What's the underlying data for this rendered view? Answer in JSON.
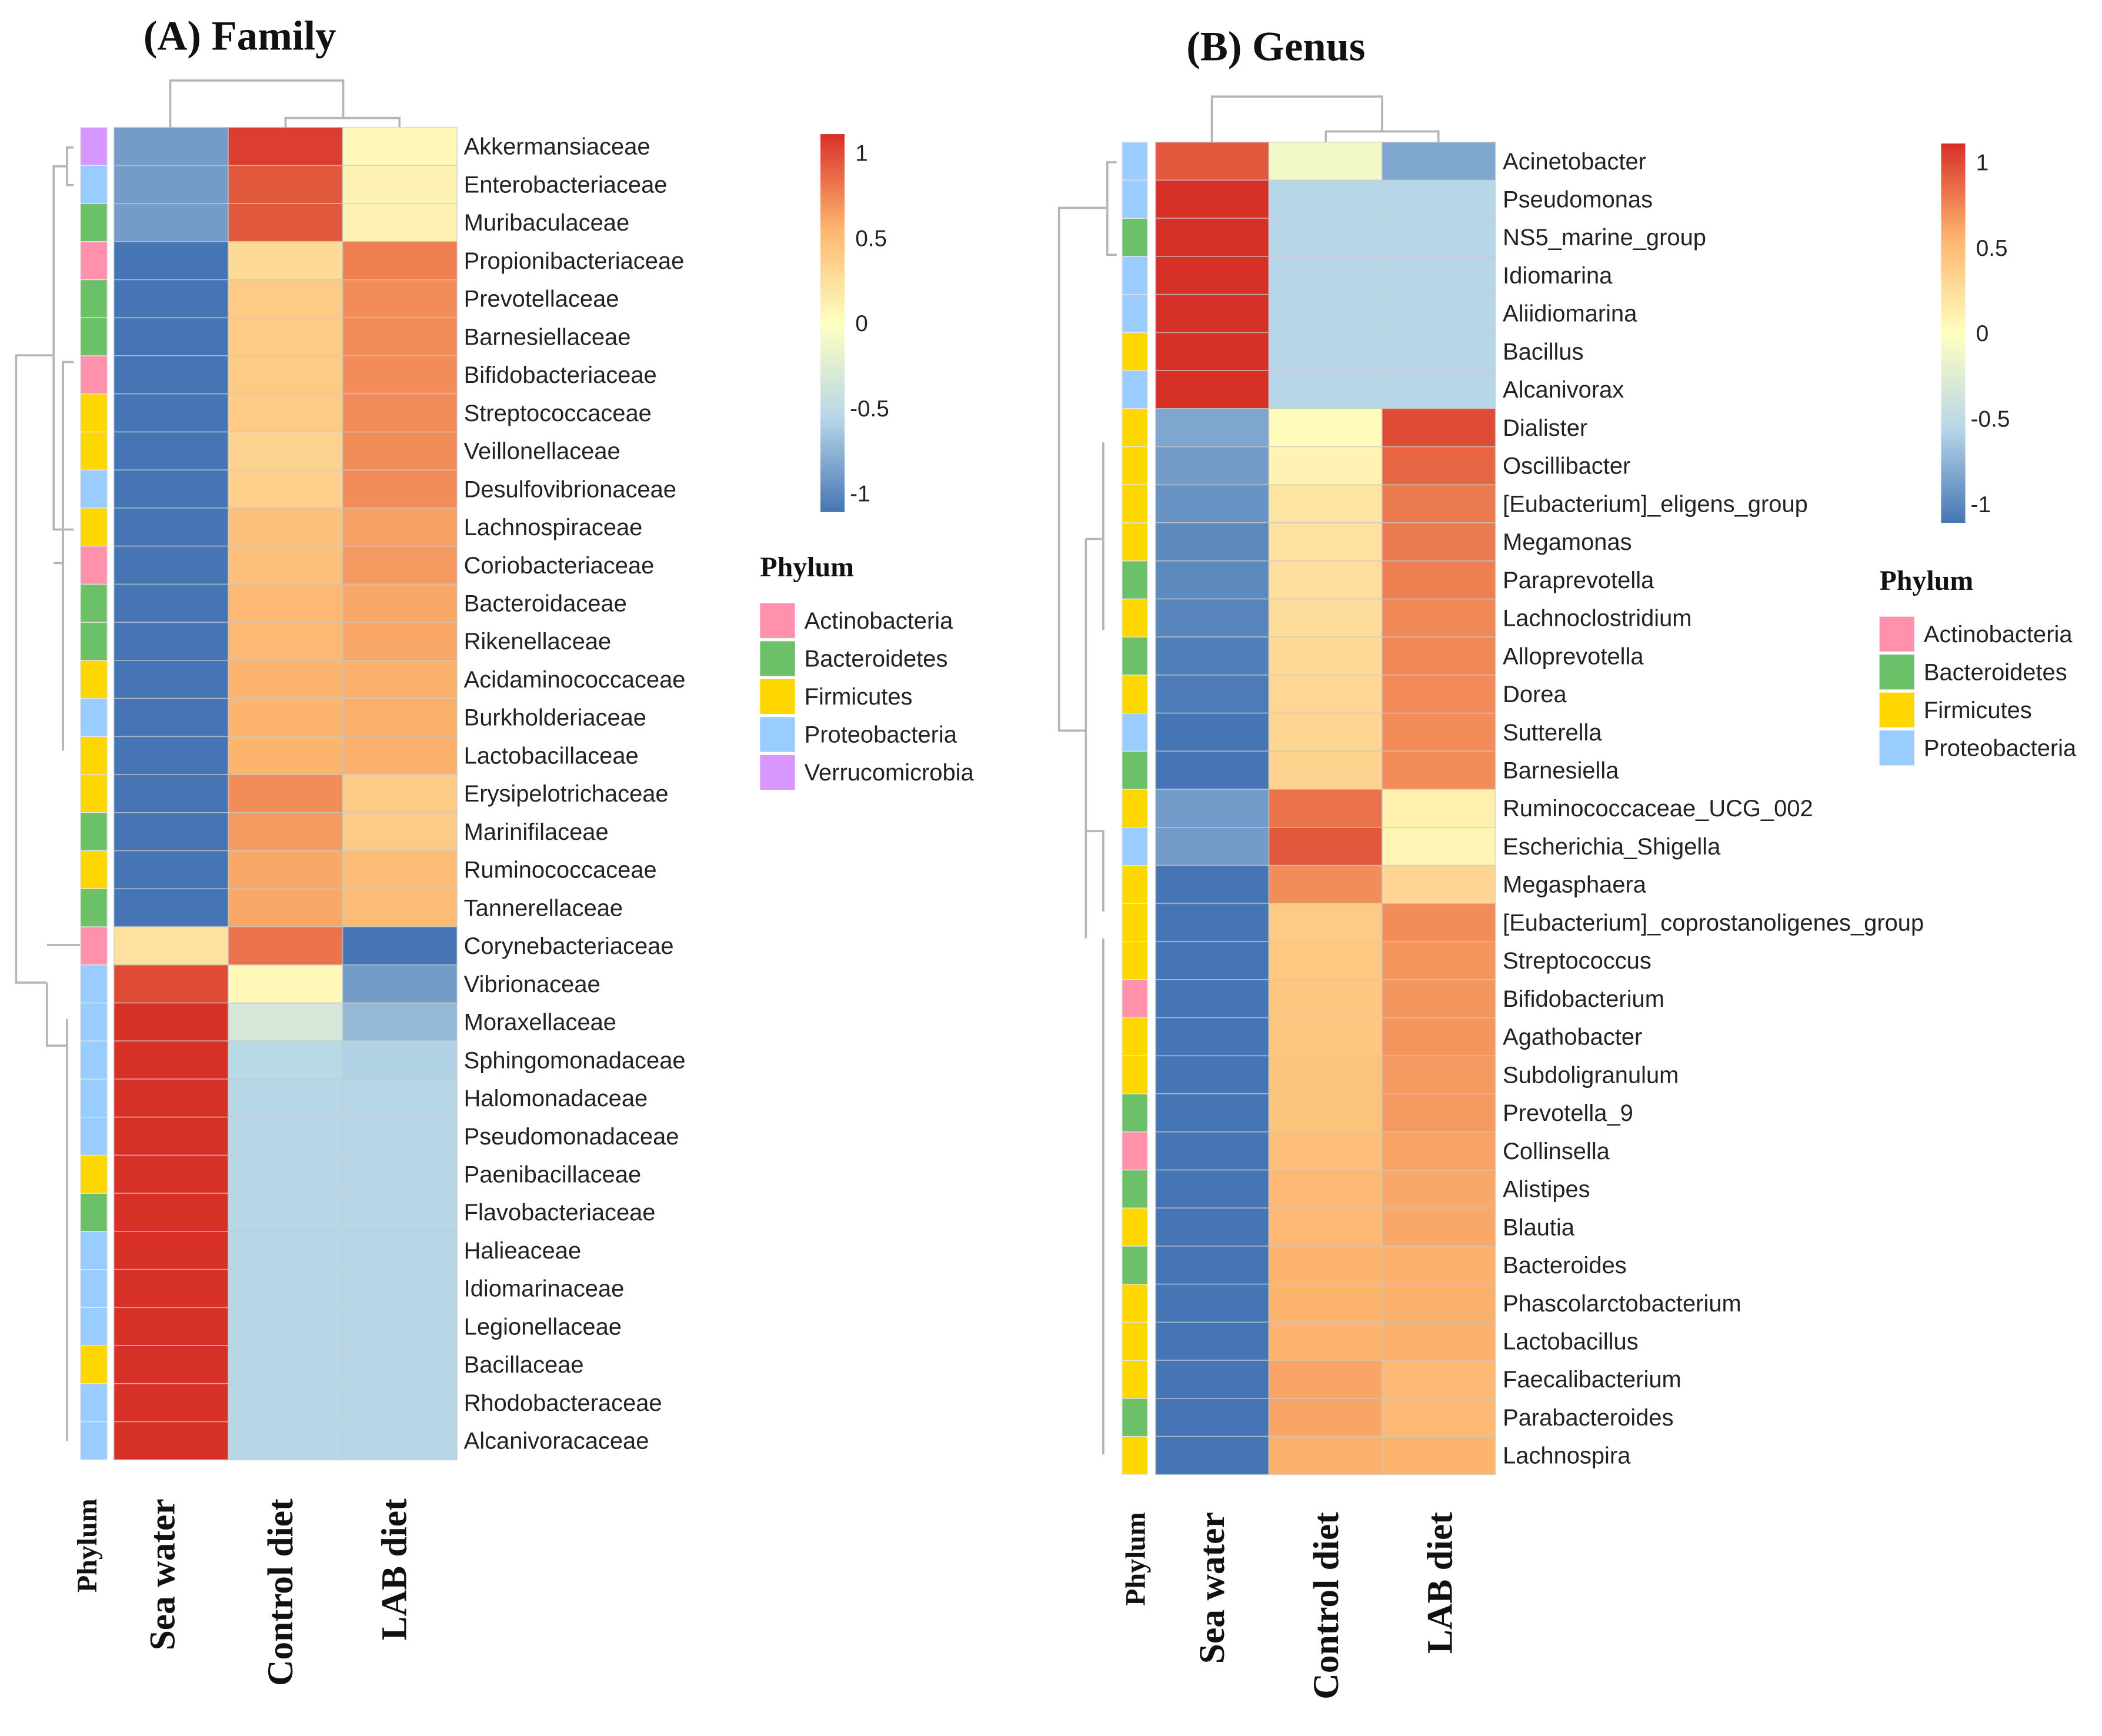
{
  "phylum_colors": {
    "Actinobacteria": "#ff91ad",
    "Bacteroidetes": "#6cc168",
    "Firmicutes": "#ffd700",
    "Proteobacteria": "#99ccff",
    "Verrucomicrobia": "#d896ff"
  },
  "colorscale": {
    "stops": [
      [
        -1,
        "#4575b4"
      ],
      [
        -0.5,
        "#b7d7e8"
      ],
      [
        0,
        "#ffffc0"
      ],
      [
        0.5,
        "#fdb56e"
      ],
      [
        1,
        "#d73027"
      ]
    ]
  },
  "chart_data": [
    {
      "type": "heatmap",
      "title": "(A) Family",
      "columns": [
        "Phylum",
        "Sea water",
        "Control diet",
        "LAB diet"
      ],
      "colorbar_ticks": [
        "1",
        "0.5",
        "0",
        "-0.5",
        "-1"
      ],
      "legend_title": "Phylum",
      "legend": [
        "Actinobacteria",
        "Bacteroidetes",
        "Firmicutes",
        "Proteobacteria",
        "Verrucomicrobia"
      ],
      "rows": [
        {
          "name": "Akkermansiaceae",
          "phylum": "Verrucomicrobia",
          "values": [
            -0.8,
            0.95,
            0.05
          ]
        },
        {
          "name": "Enterobacteriaceae",
          "phylum": "Proteobacteria",
          "values": [
            -0.8,
            0.85,
            0.08
          ]
        },
        {
          "name": "Muribaculaceae",
          "phylum": "Bacteroidetes",
          "values": [
            -0.8,
            0.85,
            0.08
          ]
        },
        {
          "name": "Propionibacteriaceae",
          "phylum": "Actinobacteria",
          "values": [
            -1,
            0.25,
            0.7
          ]
        },
        {
          "name": "Prevotellaceae",
          "phylum": "Bacteroidetes",
          "values": [
            -1,
            0.35,
            0.65
          ]
        },
        {
          "name": "Barnesiellaceae",
          "phylum": "Bacteroidetes",
          "values": [
            -1,
            0.35,
            0.65
          ]
        },
        {
          "name": "Bifidobacteriaceae",
          "phylum": "Actinobacteria",
          "values": [
            -1,
            0.35,
            0.65
          ]
        },
        {
          "name": "Streptococcaceae",
          "phylum": "Firmicutes",
          "values": [
            -1,
            0.35,
            0.65
          ]
        },
        {
          "name": "Veillonellaceae",
          "phylum": "Firmicutes",
          "values": [
            -1,
            0.3,
            0.65
          ]
        },
        {
          "name": "Desulfovibrionaceae",
          "phylum": "Proteobacteria",
          "values": [
            -1,
            0.32,
            0.65
          ]
        },
        {
          "name": "Lachnospiraceae",
          "phylum": "Firmicutes",
          "values": [
            -1,
            0.42,
            0.58
          ]
        },
        {
          "name": "Coriobacteriaceae",
          "phylum": "Actinobacteria",
          "values": [
            -1,
            0.42,
            0.6
          ]
        },
        {
          "name": "Bacteroidaceae",
          "phylum": "Bacteroidetes",
          "values": [
            -1,
            0.47,
            0.55
          ]
        },
        {
          "name": "Rikenellaceae",
          "phylum": "Bacteroidetes",
          "values": [
            -1,
            0.47,
            0.55
          ]
        },
        {
          "name": "Acidaminococcaceae",
          "phylum": "Firmicutes",
          "values": [
            -1,
            0.5,
            0.52
          ]
        },
        {
          "name": "Burkholderiaceae",
          "phylum": "Proteobacteria",
          "values": [
            -1,
            0.5,
            0.52
          ]
        },
        {
          "name": "Lactobacillaceae",
          "phylum": "Firmicutes",
          "values": [
            -1,
            0.5,
            0.52
          ]
        },
        {
          "name": "Erysipelotrichaceae",
          "phylum": "Firmicutes",
          "values": [
            -1,
            0.65,
            0.35
          ]
        },
        {
          "name": "Marinifilaceae",
          "phylum": "Bacteroidetes",
          "values": [
            -1,
            0.6,
            0.35
          ]
        },
        {
          "name": "Ruminococcaceae",
          "phylum": "Firmicutes",
          "values": [
            -1,
            0.55,
            0.45
          ]
        },
        {
          "name": "Tannerellaceae",
          "phylum": "Bacteroidetes",
          "values": [
            -1,
            0.55,
            0.45
          ]
        },
        {
          "name": "Corynebacteriaceae",
          "phylum": "Actinobacteria",
          "values": [
            0.2,
            0.75,
            -1
          ]
        },
        {
          "name": "Vibrionaceae",
          "phylum": "Proteobacteria",
          "values": [
            0.9,
            0.05,
            -0.8
          ]
        },
        {
          "name": "Moraxellaceae",
          "phylum": "Proteobacteria",
          "values": [
            1,
            -0.3,
            -0.65
          ]
        },
        {
          "name": "Sphingomonadaceae",
          "phylum": "Proteobacteria",
          "values": [
            1,
            -0.48,
            -0.52
          ]
        },
        {
          "name": "Halomonadaceae",
          "phylum": "Proteobacteria",
          "values": [
            1,
            -0.5,
            -0.5
          ]
        },
        {
          "name": "Pseudomonadaceae",
          "phylum": "Proteobacteria",
          "values": [
            1,
            -0.5,
            -0.5
          ]
        },
        {
          "name": "Paenibacillaceae",
          "phylum": "Firmicutes",
          "values": [
            1,
            -0.5,
            -0.5
          ]
        },
        {
          "name": "Flavobacteriaceae",
          "phylum": "Bacteroidetes",
          "values": [
            1,
            -0.5,
            -0.5
          ]
        },
        {
          "name": "Halieaceae",
          "phylum": "Proteobacteria",
          "values": [
            1,
            -0.5,
            -0.5
          ]
        },
        {
          "name": "Idiomarinaceae",
          "phylum": "Proteobacteria",
          "values": [
            1,
            -0.5,
            -0.5
          ]
        },
        {
          "name": "Legionellaceae",
          "phylum": "Proteobacteria",
          "values": [
            1,
            -0.5,
            -0.5
          ]
        },
        {
          "name": "Bacillaceae",
          "phylum": "Firmicutes",
          "values": [
            1,
            -0.5,
            -0.5
          ]
        },
        {
          "name": "Rhodobacteraceae",
          "phylum": "Proteobacteria",
          "values": [
            1,
            -0.5,
            -0.5
          ]
        },
        {
          "name": "Alcanivoracaceae",
          "phylum": "Proteobacteria",
          "values": [
            1,
            -0.5,
            -0.5
          ]
        }
      ]
    },
    {
      "type": "heatmap",
      "title": "(B) Genus",
      "columns": [
        "Phylum",
        "Sea water",
        "Control diet",
        "LAB diet"
      ],
      "colorbar_ticks": [
        "1",
        "0.5",
        "0",
        "-0.5",
        "-1"
      ],
      "legend_title": "Phylum",
      "legend": [
        "Actinobacteria",
        "Bacteroidetes",
        "Firmicutes",
        "Proteobacteria"
      ],
      "rows": [
        {
          "name": "Acinetobacter",
          "phylum": "Proteobacteria",
          "values": [
            0.85,
            -0.08,
            -0.75
          ]
        },
        {
          "name": "Pseudomonas",
          "phylum": "Proteobacteria",
          "values": [
            1,
            -0.5,
            -0.5
          ]
        },
        {
          "name": "NS5_marine_group",
          "phylum": "Bacteroidetes",
          "values": [
            1,
            -0.5,
            -0.5
          ]
        },
        {
          "name": "Idiomarina",
          "phylum": "Proteobacteria",
          "values": [
            1,
            -0.5,
            -0.5
          ]
        },
        {
          "name": "Aliidiomarina",
          "phylum": "Proteobacteria",
          "values": [
            1,
            -0.5,
            -0.5
          ]
        },
        {
          "name": "Bacillus",
          "phylum": "Firmicutes",
          "values": [
            1,
            -0.5,
            -0.5
          ]
        },
        {
          "name": "Alcanivorax",
          "phylum": "Proteobacteria",
          "values": [
            1,
            -0.5,
            -0.5
          ]
        },
        {
          "name": "Dialister",
          "phylum": "Firmicutes",
          "values": [
            -0.75,
            0.03,
            0.9
          ]
        },
        {
          "name": "Oscillibacter",
          "phylum": "Firmicutes",
          "values": [
            -0.8,
            0.08,
            0.8
          ]
        },
        {
          "name": "[Eubacterium]_eligens_group",
          "phylum": "Firmicutes",
          "values": [
            -0.85,
            0.18,
            0.72
          ]
        },
        {
          "name": "Megamonas",
          "phylum": "Firmicutes",
          "values": [
            -0.9,
            0.2,
            0.72
          ]
        },
        {
          "name": "Paraprevotella",
          "phylum": "Bacteroidetes",
          "values": [
            -0.9,
            0.22,
            0.7
          ]
        },
        {
          "name": "Lachnoclostridium",
          "phylum": "Firmicutes",
          "values": [
            -0.92,
            0.23,
            0.67
          ]
        },
        {
          "name": "Alloprevotella",
          "phylum": "Bacteroidetes",
          "values": [
            -0.95,
            0.25,
            0.67
          ]
        },
        {
          "name": "Dorea",
          "phylum": "Firmicutes",
          "values": [
            -0.97,
            0.27,
            0.66
          ]
        },
        {
          "name": "Sutterella",
          "phylum": "Proteobacteria",
          "values": [
            -1,
            0.28,
            0.65
          ]
        },
        {
          "name": "Barnesiella",
          "phylum": "Bacteroidetes",
          "values": [
            -1,
            0.3,
            0.65
          ]
        },
        {
          "name": "Ruminococcaceae_UCG_002",
          "phylum": "Firmicutes",
          "values": [
            -0.8,
            0.75,
            0.1
          ]
        },
        {
          "name": "Escherichia_Shigella",
          "phylum": "Proteobacteria",
          "values": [
            -0.8,
            0.85,
            0.06
          ]
        },
        {
          "name": "Megasphaera",
          "phylum": "Firmicutes",
          "values": [
            -1,
            0.65,
            0.28
          ]
        },
        {
          "name": "[Eubacterium]_coprostanoligenes_group",
          "phylum": "Firmicutes",
          "values": [
            -1,
            0.35,
            0.65
          ]
        },
        {
          "name": "Streptococcus",
          "phylum": "Firmicutes",
          "values": [
            -1,
            0.37,
            0.62
          ]
        },
        {
          "name": "Bifidobacterium",
          "phylum": "Actinobacteria",
          "values": [
            -1,
            0.38,
            0.62
          ]
        },
        {
          "name": "Agathobacter",
          "phylum": "Firmicutes",
          "values": [
            -1,
            0.38,
            0.62
          ]
        },
        {
          "name": "Subdoligranulum",
          "phylum": "Firmicutes",
          "values": [
            -1,
            0.4,
            0.6
          ]
        },
        {
          "name": "Prevotella_9",
          "phylum": "Bacteroidetes",
          "values": [
            -1,
            0.4,
            0.6
          ]
        },
        {
          "name": "Collinsella",
          "phylum": "Actinobacteria",
          "values": [
            -1,
            0.43,
            0.57
          ]
        },
        {
          "name": "Alistipes",
          "phylum": "Bacteroidetes",
          "values": [
            -1,
            0.47,
            0.55
          ]
        },
        {
          "name": "Blautia",
          "phylum": "Firmicutes",
          "values": [
            -1,
            0.47,
            0.55
          ]
        },
        {
          "name": "Bacteroides",
          "phylum": "Bacteroidetes",
          "values": [
            -1,
            0.5,
            0.52
          ]
        },
        {
          "name": "Phascolarctobacterium",
          "phylum": "Firmicutes",
          "values": [
            -1,
            0.5,
            0.52
          ]
        },
        {
          "name": "Lactobacillus",
          "phylum": "Firmicutes",
          "values": [
            -1,
            0.5,
            0.52
          ]
        },
        {
          "name": "Faecalibacterium",
          "phylum": "Firmicutes",
          "values": [
            -1,
            0.56,
            0.47
          ]
        },
        {
          "name": "Parabacteroides",
          "phylum": "Bacteroidetes",
          "values": [
            -1,
            0.56,
            0.47
          ]
        },
        {
          "name": "Lachnospira",
          "phylum": "Firmicutes",
          "values": [
            -1,
            0.52,
            0.5
          ]
        }
      ]
    }
  ]
}
